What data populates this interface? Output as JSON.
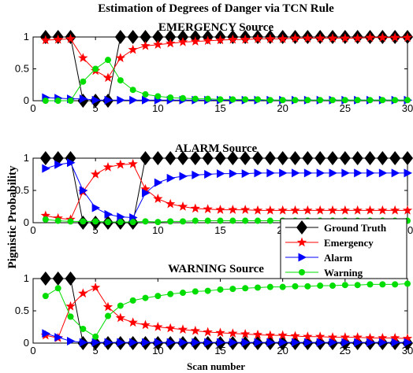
{
  "figure": {
    "title": "Estimation of Degrees of Danger via TCN Rule",
    "ylabel": "Pignistic Probability",
    "xlabel": "Scan number"
  },
  "legend": {
    "placement": "bottom-right of second panel",
    "entries": [
      {
        "label": "Ground Truth",
        "color": "#000000",
        "marker": "diamond"
      },
      {
        "label": "Emergency",
        "color": "#ff0000",
        "marker": "star"
      },
      {
        "label": "Alarm",
        "color": "#0000ff",
        "marker": "triangle-right"
      },
      {
        "label": "Warning",
        "color": "#00dd00",
        "marker": "circle"
      }
    ]
  },
  "chart_data": [
    {
      "type": "line",
      "title": "EMERGENCY Source",
      "xlim": [
        0,
        30
      ],
      "ylim": [
        0,
        1
      ],
      "xticks": [
        0,
        5,
        10,
        15,
        20,
        25,
        30
      ],
      "yticks": [
        0,
        0.5,
        1
      ],
      "x": [
        1,
        2,
        3,
        4,
        5,
        6,
        7,
        8,
        9,
        10,
        11,
        12,
        13,
        14,
        15,
        16,
        17,
        18,
        19,
        20,
        21,
        22,
        23,
        24,
        25,
        26,
        27,
        28,
        29,
        30
      ],
      "series": [
        {
          "name": "Ground Truth",
          "color": "#000000",
          "marker": "diamond",
          "values": [
            1,
            1,
            1,
            0,
            0,
            0,
            1,
            1,
            1,
            1,
            1,
            1,
            1,
            1,
            1,
            1,
            1,
            1,
            1,
            1,
            1,
            1,
            1,
            1,
            1,
            1,
            1,
            1,
            1,
            1
          ]
        },
        {
          "name": "Emergency",
          "color": "#ff0000",
          "marker": "star",
          "values": [
            0.95,
            0.96,
            0.97,
            0.67,
            0.47,
            0.36,
            0.67,
            0.8,
            0.86,
            0.88,
            0.9,
            0.92,
            0.93,
            0.94,
            0.95,
            0.96,
            0.96,
            0.97,
            0.97,
            0.97,
            0.98,
            0.98,
            0.98,
            0.98,
            0.98,
            0.98,
            0.99,
            0.99,
            0.99,
            0.99
          ]
        },
        {
          "name": "Alarm",
          "color": "#0000ff",
          "marker": "triangle-right",
          "values": [
            0.05,
            0.04,
            0.03,
            0.03,
            0.01,
            0.01,
            0.01,
            0.01,
            0.01,
            0.01,
            0.01,
            0.01,
            0.01,
            0.01,
            0.01,
            0.01,
            0.01,
            0.01,
            0.01,
            0.01,
            0.01,
            0.01,
            0.01,
            0.01,
            0.01,
            0.01,
            0.01,
            0.01,
            0.01,
            0.01
          ]
        },
        {
          "name": "Warning",
          "color": "#00dd00",
          "marker": "circle",
          "values": [
            0.0,
            0.0,
            0.0,
            0.3,
            0.5,
            0.64,
            0.32,
            0.17,
            0.1,
            0.07,
            0.05,
            0.04,
            0.03,
            0.03,
            0.02,
            0.02,
            0.02,
            0.02,
            0.01,
            0.01,
            0.01,
            0.01,
            0.01,
            0.01,
            0.01,
            0.01,
            0.01,
            0.01,
            0.01,
            0.01
          ]
        }
      ]
    },
    {
      "type": "line",
      "title": "ALARM Source",
      "xlim": [
        0,
        30
      ],
      "ylim": [
        0,
        1
      ],
      "xticks": [
        0,
        5,
        10,
        15,
        20,
        25,
        30
      ],
      "yticks": [
        0,
        0.5,
        1
      ],
      "x": [
        1,
        2,
        3,
        4,
        5,
        6,
        7,
        8,
        9,
        10,
        11,
        12,
        13,
        14,
        15,
        16,
        17,
        18,
        19,
        20,
        21,
        22,
        23,
        24,
        25,
        26,
        27,
        28,
        29,
        30
      ],
      "series": [
        {
          "name": "Ground Truth",
          "color": "#000000",
          "marker": "diamond",
          "values": [
            1,
            1,
            1,
            0,
            0,
            0,
            0,
            0,
            1,
            1,
            1,
            1,
            1,
            1,
            1,
            1,
            1,
            1,
            1,
            1,
            1,
            1,
            1,
            1,
            1,
            1,
            1,
            1,
            1,
            1
          ]
        },
        {
          "name": "Emergency",
          "color": "#ff0000",
          "marker": "star",
          "values": [
            0.11,
            0.07,
            0.05,
            0.48,
            0.75,
            0.86,
            0.9,
            0.91,
            0.52,
            0.37,
            0.29,
            0.25,
            0.22,
            0.21,
            0.2,
            0.2,
            0.2,
            0.19,
            0.19,
            0.19,
            0.19,
            0.19,
            0.19,
            0.19,
            0.19,
            0.19,
            0.19,
            0.19,
            0.19,
            0.19
          ]
        },
        {
          "name": "Alarm",
          "color": "#0000ff",
          "marker": "triangle-right",
          "values": [
            0.84,
            0.9,
            0.93,
            0.5,
            0.23,
            0.13,
            0.09,
            0.08,
            0.46,
            0.62,
            0.69,
            0.72,
            0.74,
            0.75,
            0.76,
            0.76,
            0.76,
            0.77,
            0.77,
            0.77,
            0.77,
            0.77,
            0.77,
            0.77,
            0.77,
            0.77,
            0.77,
            0.77,
            0.77,
            0.77
          ]
        },
        {
          "name": "Warning",
          "color": "#00dd00",
          "marker": "circle",
          "values": [
            0.05,
            0.03,
            0.02,
            0.02,
            0.02,
            0.01,
            0.01,
            0.01,
            0.02,
            0.01,
            0.02,
            0.02,
            0.03,
            0.03,
            0.03,
            0.03,
            0.03,
            0.03,
            0.03,
            0.03,
            0.03,
            0.03,
            0.03,
            0.03,
            0.03,
            0.03,
            0.03,
            0.03,
            0.03,
            0.03
          ]
        }
      ]
    },
    {
      "type": "line",
      "title": "WARNING Source",
      "xlim": [
        0,
        30
      ],
      "ylim": [
        0,
        1
      ],
      "xticks": [
        0,
        5,
        10,
        15,
        20,
        25,
        30
      ],
      "yticks": [
        0,
        0.5,
        1
      ],
      "x": [
        1,
        2,
        3,
        4,
        5,
        6,
        7,
        8,
        9,
        10,
        11,
        12,
        13,
        14,
        15,
        16,
        17,
        18,
        19,
        20,
        21,
        22,
        23,
        24,
        25,
        26,
        27,
        28,
        29,
        30
      ],
      "series": [
        {
          "name": "Ground Truth",
          "color": "#000000",
          "marker": "diamond",
          "values": [
            1,
            1,
            1,
            0,
            0,
            0,
            0,
            0,
            0,
            0,
            0,
            0,
            0,
            0,
            0,
            0,
            0,
            0,
            0,
            0,
            0,
            0,
            0,
            0,
            0,
            0,
            0,
            0,
            0,
            0
          ]
        },
        {
          "name": "Emergency",
          "color": "#ff0000",
          "marker": "star",
          "values": [
            0.12,
            0.08,
            0.57,
            0.77,
            0.86,
            0.56,
            0.39,
            0.32,
            0.28,
            0.25,
            0.23,
            0.21,
            0.19,
            0.17,
            0.16,
            0.15,
            0.14,
            0.13,
            0.12,
            0.12,
            0.11,
            0.1,
            0.1,
            0.09,
            0.09,
            0.09,
            0.08,
            0.08,
            0.08,
            0.07
          ]
        },
        {
          "name": "Alarm",
          "color": "#0000ff",
          "marker": "triangle-right",
          "values": [
            0.15,
            0.09,
            0.03,
            0.01,
            0.01,
            0.01,
            0.01,
            0.01,
            0.01,
            0.01,
            0.01,
            0.01,
            0.01,
            0.01,
            0.01,
            0.01,
            0.01,
            0.01,
            0.01,
            0.01,
            0.01,
            0.01,
            0.01,
            0.01,
            0.01,
            0.01,
            0.01,
            0.01,
            0.01,
            0.01
          ]
        },
        {
          "name": "Warning",
          "color": "#00dd00",
          "marker": "circle",
          "values": [
            0.73,
            0.85,
            0.41,
            0.22,
            0.1,
            0.42,
            0.58,
            0.66,
            0.7,
            0.73,
            0.76,
            0.78,
            0.8,
            0.81,
            0.83,
            0.84,
            0.85,
            0.86,
            0.87,
            0.87,
            0.88,
            0.88,
            0.89,
            0.89,
            0.9,
            0.9,
            0.91,
            0.91,
            0.91,
            0.92
          ]
        }
      ]
    }
  ]
}
